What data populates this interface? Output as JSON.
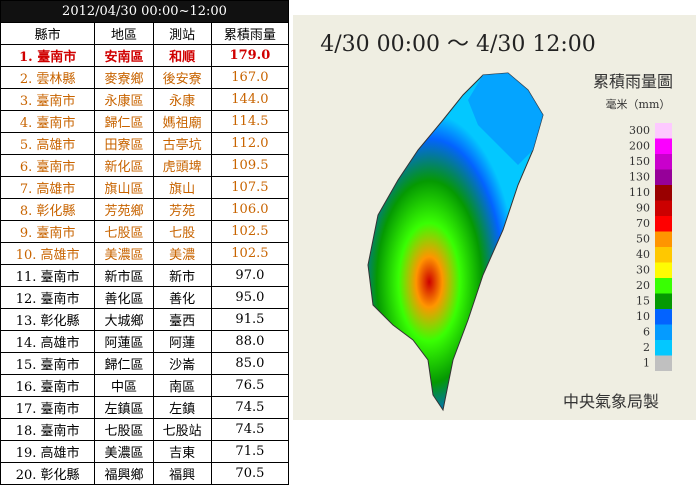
{
  "table": {
    "title": "2012/04/30 00:00~12:00",
    "columns": [
      "縣市",
      "地區",
      "測站",
      "累積雨量"
    ],
    "rows": [
      [
        "1. 臺南市",
        "安南區",
        "和順",
        "179.0"
      ],
      [
        "2. 雲林縣",
        "麥寮鄉",
        "後安寮",
        "167.0"
      ],
      [
        "3. 臺南市",
        "永康區",
        "永康",
        "144.0"
      ],
      [
        "4. 臺南市",
        "歸仁區",
        "媽祖廟",
        "114.5"
      ],
      [
        "5. 高雄市",
        "田寮區",
        "古亭坑",
        "112.0"
      ],
      [
        "6. 臺南市",
        "新化區",
        "虎頭埤",
        "109.5"
      ],
      [
        "7. 高雄市",
        "旗山區",
        "旗山",
        "107.5"
      ],
      [
        "8. 彰化縣",
        "芳苑鄉",
        "芳苑",
        "106.0"
      ],
      [
        "9. 臺南市",
        "七股區",
        "七股",
        "102.5"
      ],
      [
        "10. 高雄市",
        "美濃區",
        "美濃",
        "102.5"
      ],
      [
        "11. 臺南市",
        "新市區",
        "新市",
        "97.0"
      ],
      [
        "12. 臺南市",
        "善化區",
        "善化",
        "95.0"
      ],
      [
        "13. 彰化縣",
        "大城鄉",
        "臺西",
        "91.5"
      ],
      [
        "14. 高雄市",
        "阿蓮區",
        "阿蓮",
        "88.0"
      ],
      [
        "15. 臺南市",
        "歸仁區",
        "沙崙",
        "85.0"
      ],
      [
        "16. 臺南市",
        "中區",
        "南區",
        "76.5"
      ],
      [
        "17. 臺南市",
        "左鎮區",
        "左鎮",
        "74.5"
      ],
      [
        "18. 臺南市",
        "七股區",
        "七股站",
        "74.5"
      ],
      [
        "19. 高雄市",
        "美濃區",
        "吉東",
        "71.5"
      ],
      [
        "20. 彰化縣",
        "福興鄉",
        "福興",
        "70.5"
      ]
    ]
  },
  "map": {
    "title": "4/30 00:00 ～ 4/30 12:00",
    "legend": {
      "title": "累積雨量圖",
      "unit": "毫米（mm）",
      "levels": [
        {
          "label": "300",
          "color": "#fdc9ff"
        },
        {
          "label": "200",
          "color": "#fb00ff"
        },
        {
          "label": "150",
          "color": "#c900cc"
        },
        {
          "label": "130",
          "color": "#960099"
        },
        {
          "label": "110",
          "color": "#990000"
        },
        {
          "label": "90",
          "color": "#cc0000"
        },
        {
          "label": "70",
          "color": "#ff0000"
        },
        {
          "label": "50",
          "color": "#ff9500"
        },
        {
          "label": "40",
          "color": "#ffc800"
        },
        {
          "label": "30",
          "color": "#fffb03"
        },
        {
          "label": "20",
          "color": "#39ff03"
        },
        {
          "label": "15",
          "color": "#059902"
        },
        {
          "label": "10",
          "color": "#0363ff"
        },
        {
          "label": "6",
          "color": "#059bff"
        },
        {
          "label": "2",
          "color": "#03c8ff"
        },
        {
          "label": "1",
          "color": "#c0c0c0"
        }
      ]
    },
    "credit": "中央氣象局製"
  }
}
